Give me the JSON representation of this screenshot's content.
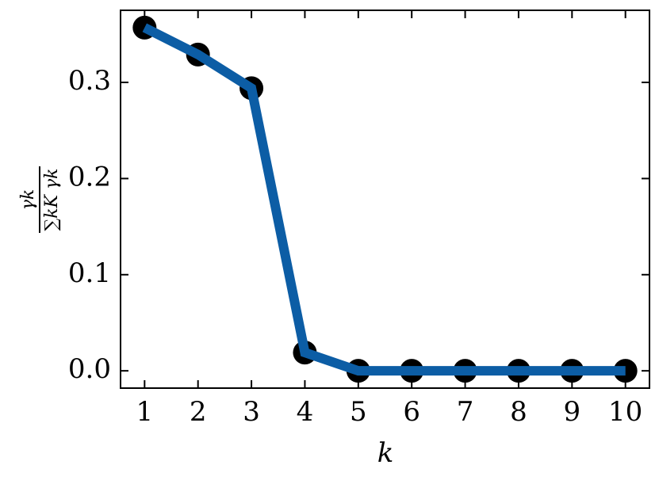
{
  "chart_data": {
    "type": "line",
    "x": [
      1,
      2,
      3,
      4,
      5,
      6,
      7,
      8,
      9,
      10
    ],
    "series": [
      {
        "color": "#0C5DA5",
        "marker_color": "#000000",
        "values": [
          0.357,
          0.329,
          0.294,
          0.019,
          0.0,
          0.0,
          0.0,
          0.0,
          0.0,
          0.0
        ]
      }
    ],
    "xlabel": "k",
    "ylabel": {
      "numerator": "γk",
      "denominator": "∑kK γk"
    },
    "xlim": [
      0.55,
      10.45
    ],
    "xticks": [
      1,
      2,
      3,
      4,
      5,
      6,
      7,
      8,
      9,
      10
    ],
    "ylim": [
      -0.018,
      0.375
    ],
    "yticks": [
      {
        "value": 0,
        "label": "0.0"
      },
      0.1,
      0.2,
      0.3
    ],
    "grid": false
  }
}
